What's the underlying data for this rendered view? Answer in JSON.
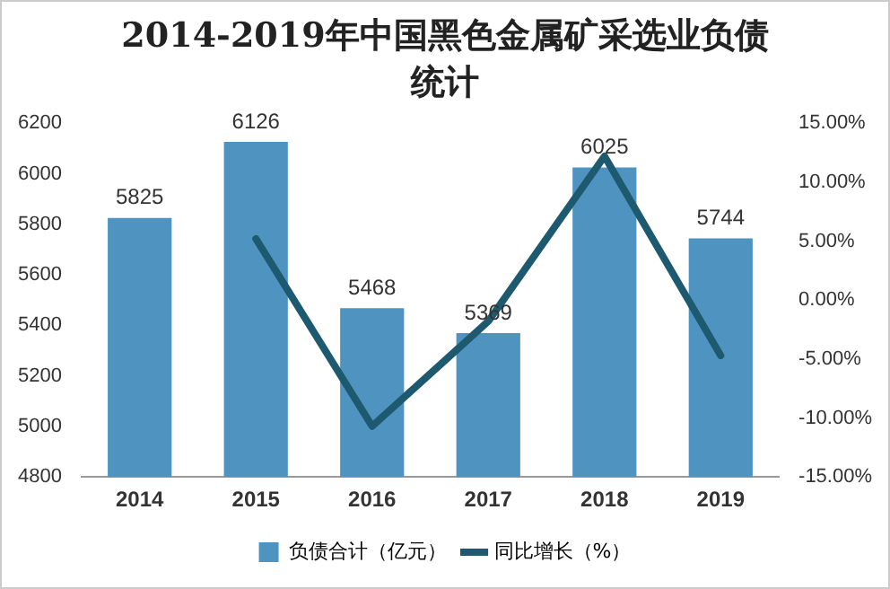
{
  "chart_data": {
    "type": "bar",
    "title": "2014-2019年中国黑色金属矿采选业负债统计",
    "categories": [
      "2014",
      "2015",
      "2016",
      "2017",
      "2018",
      "2019"
    ],
    "series": [
      {
        "name": "负债合计（亿元）",
        "color": "#4f94c0",
        "values": [
          5825,
          6126,
          5468,
          5369,
          6025,
          5744
        ],
        "value_labels": [
          "5825",
          "6126",
          "5468",
          "5369",
          "6025",
          "5744"
        ]
      },
      {
        "name": "同比增长（%）",
        "type": "line",
        "axis": "y2",
        "color": "#1d5a70",
        "values": [
          null,
          5.2,
          -10.7,
          -1.8,
          12.2,
          -4.7
        ]
      }
    ],
    "ylim": [
      4800,
      6200
    ],
    "yticks": [
      4800,
      5000,
      5200,
      5400,
      5600,
      5800,
      6000,
      6200
    ],
    "y2lim": [
      -15,
      15
    ],
    "y2ticks": [
      {
        "value": -15,
        "label": "-15.00%"
      },
      {
        "value": -10,
        "label": "-10.00%"
      },
      {
        "value": -5,
        "label": "-5.00%"
      },
      {
        "value": 0,
        "label": "0.00%"
      },
      {
        "value": 5,
        "label": "5.00%"
      },
      {
        "value": 10,
        "label": "10.00%"
      },
      {
        "value": 15,
        "label": "15.00%"
      }
    ],
    "legend": "bottom",
    "marker": "none"
  }
}
